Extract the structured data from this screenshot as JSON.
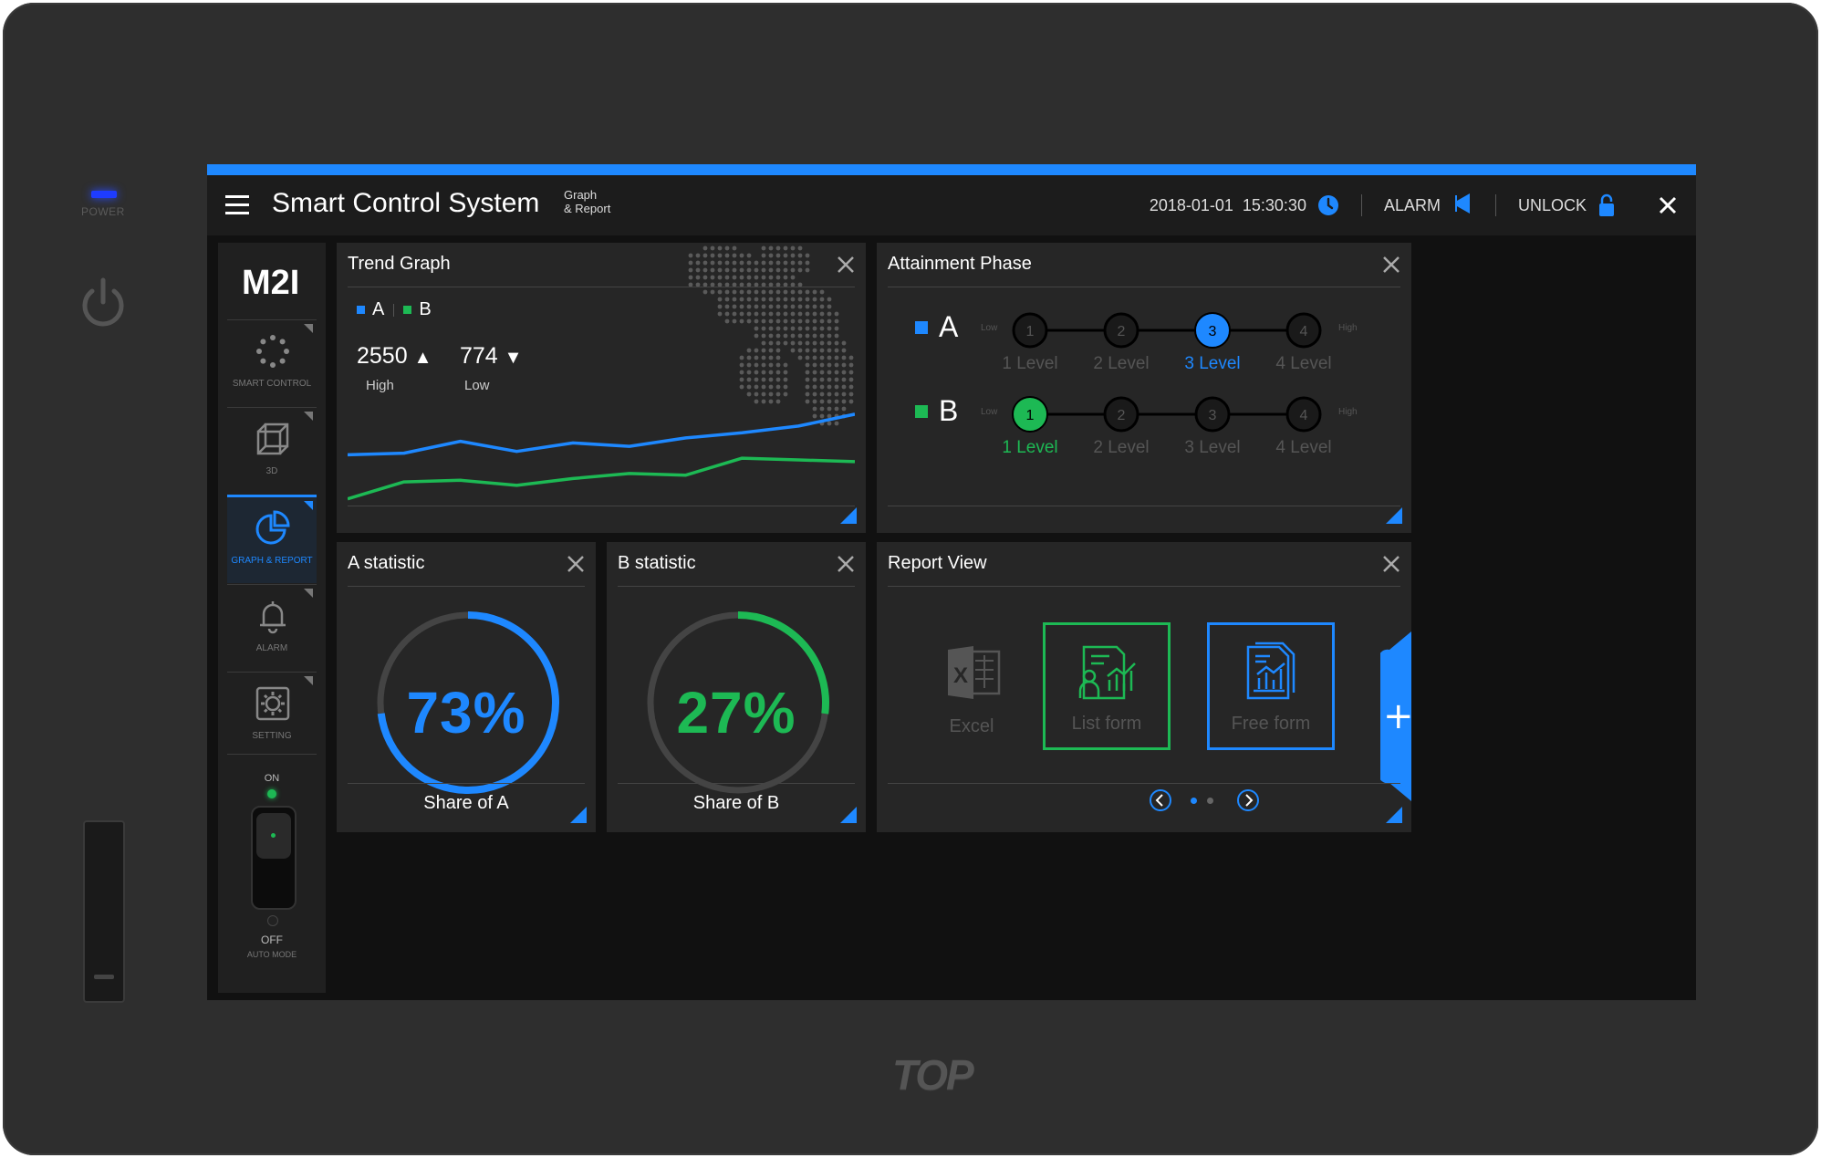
{
  "device": {
    "power_label": "POWER",
    "brand": "TOP"
  },
  "header": {
    "title": "Smart Control System",
    "subtitle_line1": "Graph",
    "subtitle_line2": "& Report",
    "datetime": "2018-01-01  15:30:30",
    "alarm_label": "ALARM",
    "unlock_label": "UNLOCK",
    "accent_color": "#1e88ff"
  },
  "sidebar": {
    "logo": "M2I",
    "items": [
      {
        "label": "SMART CONTROL",
        "icon": "smart-control-icon"
      },
      {
        "label": "3D",
        "icon": "cube-icon"
      },
      {
        "label": "GRAPH & REPORT",
        "icon": "pie-chart-icon",
        "active": true
      },
      {
        "label": "ALARM",
        "icon": "bell-icon"
      },
      {
        "label": "SETTING",
        "icon": "gear-icon"
      }
    ],
    "switch": {
      "on_label": "ON",
      "off_label": "OFF",
      "mode_label": "AUTO MODE"
    }
  },
  "trend": {
    "title": "Trend Graph",
    "legend_a": "A",
    "legend_b": "B",
    "high_value": "2550",
    "high_label": "High",
    "low_value": "774",
    "low_label": "Low",
    "color_a": "#1e88ff",
    "color_b": "#1db954",
    "chart_data": {
      "type": "line",
      "series": [
        {
          "name": "A",
          "values": [
            62,
            64,
            78,
            66,
            76,
            72,
            82,
            88,
            96,
            110
          ]
        },
        {
          "name": "B",
          "values": [
            10,
            30,
            32,
            26,
            34,
            40,
            38,
            58,
            56,
            54
          ]
        }
      ],
      "ylim": [
        0,
        140
      ]
    }
  },
  "attainment": {
    "title": "Attainment Phase",
    "low_label": "Low",
    "high_label": "High",
    "rows": [
      {
        "name": "A",
        "color": "#1e88ff",
        "active": 3,
        "levels": [
          "1 Level",
          "2 Level",
          "3 Level",
          "4 Level"
        ],
        "nums": [
          "1",
          "2",
          "3",
          "4"
        ]
      },
      {
        "name": "B",
        "color": "#1db954",
        "active": 1,
        "levels": [
          "1 Level",
          "2 Level",
          "3 Level",
          "4 Level"
        ],
        "nums": [
          "1",
          "2",
          "3",
          "4"
        ]
      }
    ]
  },
  "stat_a": {
    "title": "A statistic",
    "percent_text": "73%",
    "fraction": 0.73,
    "share_label": "Share of A",
    "color": "#1e88ff"
  },
  "stat_b": {
    "title": "B statistic",
    "percent_text": "27%",
    "fraction": 0.27,
    "share_label": "Share of B",
    "color": "#1db954"
  },
  "report": {
    "title": "Report View",
    "cards": [
      {
        "label": "Excel",
        "icon": "excel-icon"
      },
      {
        "label": "List form",
        "icon": "list-form-icon"
      },
      {
        "label": "Free form",
        "icon": "free-form-icon"
      }
    ],
    "add_label": "+"
  }
}
